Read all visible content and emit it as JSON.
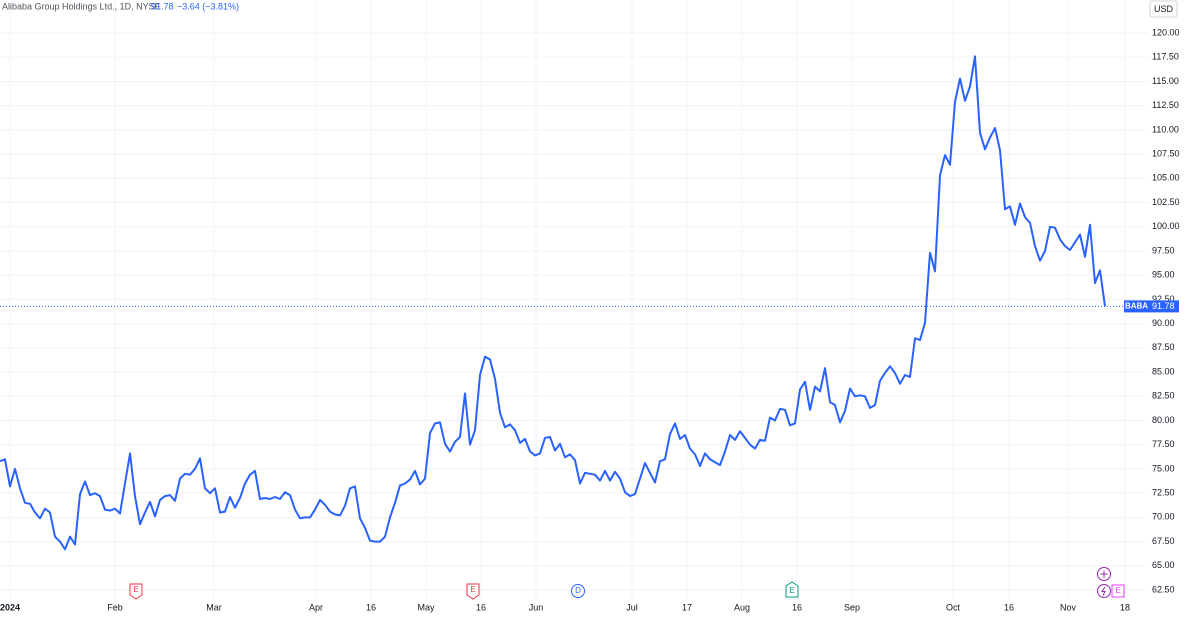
{
  "chart_data": {
    "type": "line",
    "title": "Alibaba Group Holdings Ltd., 1D, NYSE",
    "last_price": 91.78,
    "change": "−3.64 (−3.81%)",
    "symbol": "BABA",
    "currency": "USD",
    "events": [
      "E",
      "E",
      "D",
      "E",
      "E"
    ],
    "xlim": [
      0,
      229.6
    ],
    "xticks": [
      {
        "value": 2,
        "label": "2024"
      },
      {
        "value": 23,
        "label": "Feb"
      },
      {
        "value": 42.8,
        "label": "Mar"
      },
      {
        "value": 63.2,
        "label": "Apr"
      },
      {
        "value": 74.2,
        "label": "16"
      },
      {
        "value": 85.2,
        "label": "May"
      },
      {
        "value": 96.2,
        "label": "16"
      },
      {
        "value": 107.2,
        "label": "Jun"
      },
      {
        "value": 126.4,
        "label": "Jul"
      },
      {
        "value": 137.4,
        "label": "17"
      },
      {
        "value": 148.4,
        "label": "Aug"
      },
      {
        "value": 159.4,
        "label": "16"
      },
      {
        "value": 170.4,
        "label": "Sep"
      },
      {
        "value": 190.6,
        "label": "Oct"
      },
      {
        "value": 201.8,
        "label": "16"
      },
      {
        "value": 213.6,
        "label": "Nov"
      },
      {
        "value": 225,
        "label": "18"
      }
    ],
    "ylim": [
      61.47,
      123.41
    ],
    "yticks": [
      {
        "value": 62.5,
        "label": "62.50"
      },
      {
        "value": 65,
        "label": "65.00"
      },
      {
        "value": 67.5,
        "label": "67.50"
      },
      {
        "value": 70,
        "label": "70.00"
      },
      {
        "value": 72.5,
        "label": "72.50"
      },
      {
        "value": 75,
        "label": "75.00"
      },
      {
        "value": 77.5,
        "label": "77.50"
      },
      {
        "value": 80,
        "label": "80.00"
      },
      {
        "value": 82.5,
        "label": "82.50"
      },
      {
        "value": 85,
        "label": "85.00"
      },
      {
        "value": 87.5,
        "label": "87.50"
      },
      {
        "value": 90,
        "label": "90.00"
      },
      {
        "value": 92.5,
        "label": "92.50"
      },
      {
        "value": 95,
        "label": "95.00"
      },
      {
        "value": 97.5,
        "label": "97.50"
      },
      {
        "value": 100,
        "label": "100.00"
      },
      {
        "value": 102.5,
        "label": "102.50"
      },
      {
        "value": 105,
        "label": "105.00"
      },
      {
        "value": 107.5,
        "label": "107.50"
      },
      {
        "value": 110,
        "label": "110.00"
      },
      {
        "value": 112.5,
        "label": "112.50"
      },
      {
        "value": 115,
        "label": "115.00"
      },
      {
        "value": 117.5,
        "label": "117.50"
      },
      {
        "value": 120,
        "label": "120.00"
      }
    ],
    "grid": true,
    "color": "#2962ff",
    "values": [
      75.8,
      76.0,
      73.2,
      75.0,
      73.0,
      71.5,
      71.4,
      70.5,
      69.9,
      70.9,
      70.5,
      68.0,
      67.5,
      66.7,
      68.0,
      67.2,
      72.4,
      73.7,
      72.3,
      72.5,
      72.2,
      70.8,
      70.7,
      70.9,
      70.4,
      73.5,
      76.6,
      72.2,
      69.3,
      70.5,
      71.6,
      70.1,
      71.8,
      72.2,
      72.3,
      71.7,
      74.0,
      74.5,
      74.4,
      75.0,
      76.1,
      73.0,
      72.5,
      73.0,
      70.5,
      70.6,
      72.1,
      71.0,
      72.0,
      73.5,
      74.4,
      74.8,
      71.9,
      72.0,
      71.9,
      72.1,
      71.9,
      72.6,
      72.3,
      70.8,
      69.9,
      70.0,
      70.0,
      70.8,
      71.8,
      71.3,
      70.6,
      70.3,
      70.2,
      71.2,
      73.0,
      73.2,
      69.9,
      68.9,
      67.6,
      67.5,
      67.5,
      68.0,
      70.0,
      71.5,
      73.3,
      73.5,
      73.9,
      74.8,
      73.4,
      74.0,
      78.7,
      79.7,
      79.8,
      77.6,
      76.8,
      77.8,
      78.3,
      82.8,
      77.5,
      79.0,
      84.7,
      86.6,
      86.3,
      84.3,
      80.8,
      79.3,
      79.6,
      79.0,
      77.7,
      78.1,
      76.8,
      76.4,
      76.6,
      78.2,
      78.3,
      76.9,
      77.6,
      76.2,
      76.5,
      75.9,
      73.5,
      74.6,
      74.5,
      74.4,
      73.8,
      74.8,
      73.8,
      74.7,
      74.0,
      72.6,
      72.2,
      72.4,
      74.0,
      75.6,
      74.6,
      73.6,
      75.8,
      76.0,
      78.6,
      79.7,
      78.1,
      78.5,
      77.1,
      76.5,
      75.3,
      76.6,
      76.0,
      75.7,
      75.4,
      76.8,
      78.5,
      78.0,
      78.9,
      78.2,
      77.5,
      77.1,
      78.0,
      77.9,
      80.3,
      80.0,
      81.2,
      81.1,
      79.5,
      79.7,
      83.2,
      84.0,
      81.1,
      83.5,
      83.0,
      85.4,
      81.9,
      81.6,
      79.8,
      81.0,
      83.3,
      82.5,
      82.6,
      82.5,
      81.3,
      81.6,
      84.1,
      84.9,
      85.6,
      84.9,
      83.8,
      84.7,
      84.5,
      88.5,
      88.3,
      90.1,
      97.3,
      95.4,
      105.3,
      107.4,
      106.4,
      112.9,
      115.3,
      113.0,
      114.5,
      117.6,
      109.7,
      108.0,
      109.2,
      110.2,
      107.9,
      101.8,
      102.1,
      100.2,
      102.4,
      101.0,
      100.4,
      98.0,
      96.5,
      97.5,
      100.0,
      99.9,
      98.7,
      98.0,
      97.6,
      98.4,
      99.2,
      96.9,
      100.2,
      94.2,
      95.5,
      91.78
    ]
  }
}
